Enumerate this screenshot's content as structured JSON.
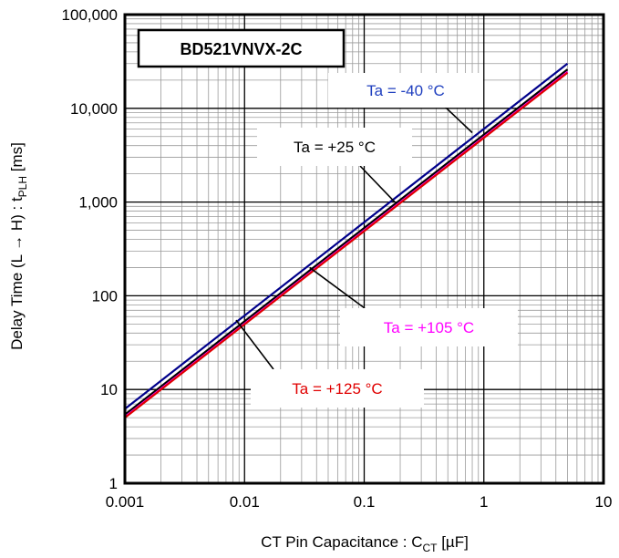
{
  "chart_data": {
    "type": "line",
    "title": "BD521VNVX-2C",
    "xlabel": {
      "main": "CT Pin Capacitance : C",
      "sub": "CT",
      "unit": " [µF]"
    },
    "ylabel": {
      "main": "Delay Time (L → H) : t",
      "sub": "PLH",
      "unit": " [ms]"
    },
    "x_scale": "log",
    "y_scale": "log",
    "xlim": [
      0.001,
      10
    ],
    "ylim": [
      1,
      100000
    ],
    "grid": true,
    "x_ticks": [
      {
        "value": 0.001,
        "label": "0.001"
      },
      {
        "value": 0.01,
        "label": "0.01"
      },
      {
        "value": 0.1,
        "label": "0.1"
      },
      {
        "value": 1,
        "label": "1"
      },
      {
        "value": 10,
        "label": "10"
      }
    ],
    "y_ticks": [
      {
        "value": 1,
        "label": "1"
      },
      {
        "value": 10,
        "label": "10"
      },
      {
        "value": 100,
        "label": "100"
      },
      {
        "value": 1000,
        "label": "1,000"
      },
      {
        "value": 10000,
        "label": "10,000"
      },
      {
        "value": 100000,
        "label": "100,000"
      }
    ],
    "series": [
      {
        "name": "Ta = -40 °C",
        "color": "#00008b",
        "x": [
          0.001,
          5
        ],
        "y": [
          6.2,
          30000
        ]
      },
      {
        "name": "Ta = +25 °C",
        "color": "#000000",
        "x": [
          0.001,
          5
        ],
        "y": [
          5.4,
          26000
        ]
      },
      {
        "name": "Ta = +105 °C",
        "color": "#ff00ff",
        "x": [
          0.001,
          5
        ],
        "y": [
          5.1,
          24500
        ]
      },
      {
        "name": "Ta = +125 °C",
        "color": "#e00000",
        "x": [
          0.001,
          5
        ],
        "y": [
          5.0,
          24000
        ]
      }
    ],
    "annotations": [
      {
        "label": "Ta = -40 °C",
        "color": "#1f3fbf",
        "pointer": {
          "x": 0.8,
          "y": 5500
        }
      },
      {
        "label": "Ta = +25 °C",
        "color": "#000000",
        "pointer": {
          "x": 0.18,
          "y": 1000
        }
      },
      {
        "label": "Ta = +105 °C",
        "color": "#ff00ff",
        "pointer": {
          "x": 0.035,
          "y": 200
        }
      },
      {
        "label": "Ta = +125 °C",
        "color": "#e00000",
        "pointer": {
          "x": 0.0085,
          "y": 55
        }
      }
    ]
  }
}
